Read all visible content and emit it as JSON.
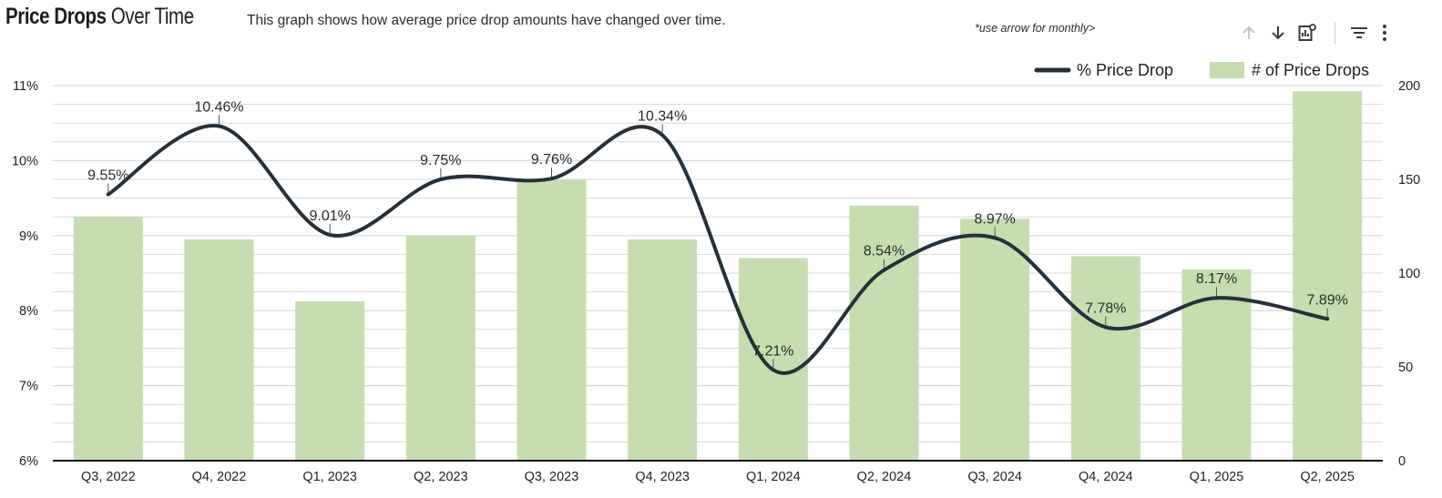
{
  "header": {
    "title_bold": "Price Drops",
    "title_rest": " Over Time",
    "subtitle": "This graph shows how average price drop amounts have changed over time.",
    "hint": "*use arrow for monthly>"
  },
  "toolbar": {
    "icons": [
      "arrow-up-icon",
      "arrow-down-icon",
      "chart-settings-icon",
      "filter-icon",
      "more-vert-icon"
    ]
  },
  "colors": {
    "line": "#25313a",
    "bar": "#c6ddb0",
    "grid": "#d9d9d9",
    "axis": "#111111"
  },
  "chart_data": {
    "type": "bar",
    "combo": "bar+line",
    "categories": [
      "Q3, 2022",
      "Q4, 2022",
      "Q1, 2023",
      "Q2, 2023",
      "Q3, 2023",
      "Q4, 2023",
      "Q1, 2024",
      "Q2, 2024",
      "Q3, 2024",
      "Q4, 2024",
      "Q1, 2025",
      "Q2, 2025"
    ],
    "series": [
      {
        "name": "% Price Drop",
        "type": "line",
        "axis": "left",
        "values": [
          9.55,
          10.46,
          9.01,
          9.75,
          9.76,
          10.34,
          7.21,
          8.54,
          8.97,
          7.78,
          8.17,
          7.89
        ],
        "labels": [
          "9.55%",
          "10.46%",
          "9.01%",
          "9.75%",
          "9.76%",
          "10.34%",
          "7.21%",
          "8.54%",
          "8.97%",
          "7.78%",
          "8.17%",
          "7.89%"
        ]
      },
      {
        "name": "# of Price Drops",
        "type": "bar",
        "axis": "right",
        "values": [
          130,
          118,
          85,
          120,
          150,
          118,
          108,
          136,
          129,
          109,
          102,
          197
        ]
      }
    ],
    "y_left": {
      "ylim": [
        6,
        11
      ],
      "ticks": [
        "6%",
        "7%",
        "8%",
        "9%",
        "10%",
        "11%"
      ]
    },
    "y_right": {
      "ylim": [
        0,
        200
      ],
      "ticks": [
        "0",
        "50",
        "100",
        "150",
        "200"
      ]
    },
    "grid": true,
    "legend_position": "top-right"
  }
}
